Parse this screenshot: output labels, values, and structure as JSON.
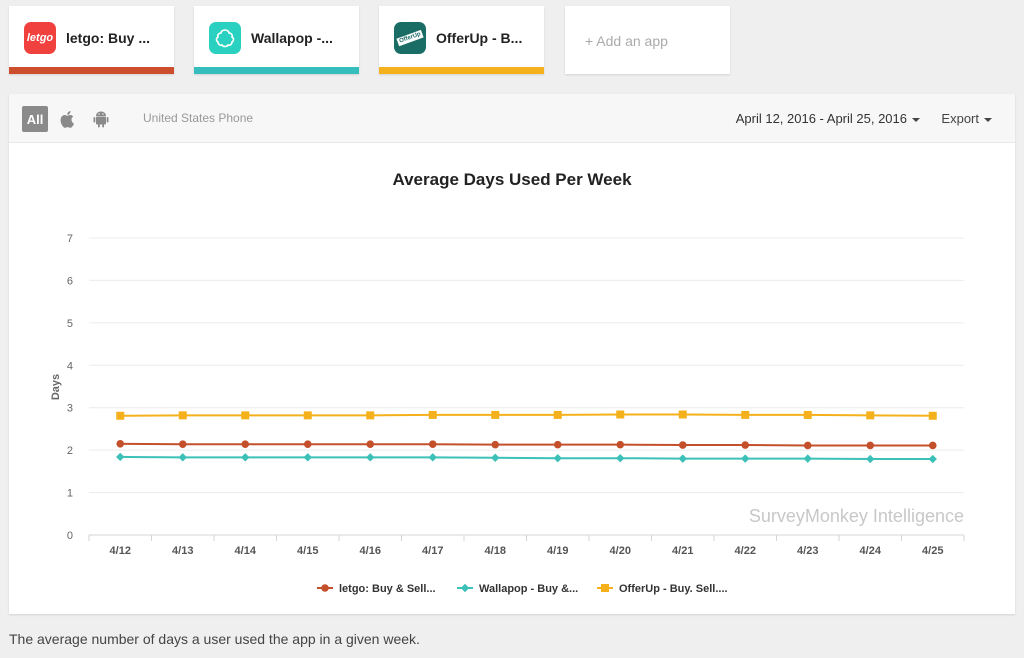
{
  "apps": [
    {
      "name": "letgo: Buy ...",
      "icon": "letgo-app-icon",
      "icon_text": "letgo",
      "color": "#cc4e2c",
      "icon_bg": "#f0413f"
    },
    {
      "name": "Wallapop -...",
      "icon": "wallapop-app-icon",
      "icon_text": "",
      "color": "#36bdbd",
      "icon_bg": "#2ad1c0"
    },
    {
      "name": "OfferUp - B...",
      "icon": "offerup-app-icon",
      "icon_text": "OfferUp",
      "color": "#f4b11c",
      "icon_bg": "#1a6d64"
    }
  ],
  "add_app_label": "+ Add an app",
  "toolbar": {
    "all_label": "All",
    "region": "United States Phone",
    "date_range": "April 12, 2016 - April 25, 2016",
    "export_label": "Export"
  },
  "caption": "The average number of days a user used the app in a given week.",
  "chart_data": {
    "type": "line",
    "title": "Average Days Used Per Week",
    "xlabel": "",
    "ylabel": "Days",
    "ylim": [
      0,
      7
    ],
    "yticks": [
      "0",
      "1",
      "2",
      "3",
      "4",
      "5",
      "6",
      "7"
    ],
    "categories": [
      "4/12",
      "4/13",
      "4/14",
      "4/15",
      "4/16",
      "4/17",
      "4/18",
      "4/19",
      "4/20",
      "4/21",
      "4/22",
      "4/23",
      "4/24",
      "4/25"
    ],
    "watermark": "SurveyMonkey Intelligence",
    "grid": true,
    "legend_position": "bottom",
    "series": [
      {
        "name": "letgo: Buy & Sell...",
        "color": "#c4502b",
        "marker": "circle",
        "values": [
          2.15,
          2.14,
          2.14,
          2.14,
          2.14,
          2.14,
          2.13,
          2.13,
          2.13,
          2.12,
          2.12,
          2.11,
          2.11,
          2.11
        ]
      },
      {
        "name": "Wallapop - Buy &...",
        "color": "#3cc0b8",
        "marker": "diamond",
        "values": [
          1.84,
          1.83,
          1.83,
          1.83,
          1.83,
          1.83,
          1.82,
          1.81,
          1.81,
          1.8,
          1.8,
          1.8,
          1.79,
          1.79
        ]
      },
      {
        "name": "OfferUp - Buy. Sell....",
        "color": "#f5b11c",
        "marker": "square",
        "values": [
          2.81,
          2.82,
          2.82,
          2.82,
          2.82,
          2.83,
          2.83,
          2.83,
          2.84,
          2.84,
          2.83,
          2.83,
          2.82,
          2.81
        ]
      }
    ]
  }
}
